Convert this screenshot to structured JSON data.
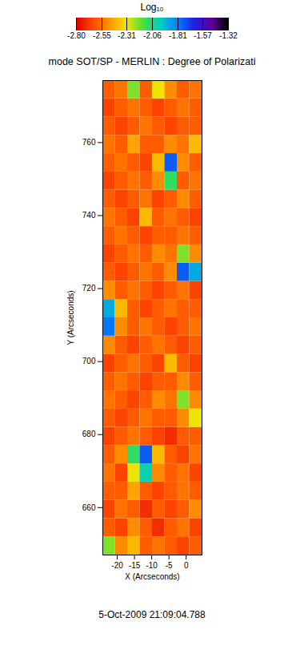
{
  "chart_data": {
    "type": "heatmap",
    "title": "mode SOT/SP - MERLIN : Degree of Polarizati",
    "caption": "5-Oct-2009 21:09:04.788",
    "x_label": "X (Arcseconds)",
    "y_label": "Y (Arcseconds)",
    "xlim": [
      -24.2,
      4.6
    ],
    "ylim": [
      647,
      777
    ],
    "xticks": [
      -20,
      -15,
      -10,
      -5,
      0
    ],
    "yticks": [
      660,
      680,
      700,
      720,
      740,
      760
    ],
    "x_edges": [
      -24.2,
      -20.6,
      -17,
      -13.4,
      -9.8,
      -6.2,
      -2.6,
      1,
      4.6
    ],
    "y_edges": [
      647,
      652,
      657,
      662,
      667,
      672,
      677,
      682,
      687,
      692,
      697,
      702,
      707,
      712,
      717,
      722,
      727,
      732,
      737,
      742,
      747,
      752,
      757,
      762,
      767,
      772,
      777
    ],
    "values": [
      [
        -2.2,
        -2.5,
        -2.4,
        -2.6,
        -2.55,
        -2.6,
        -2.65,
        -2.6
      ],
      [
        -2.6,
        -2.65,
        -2.5,
        -2.6,
        -2.7,
        -2.6,
        -2.55,
        -2.65
      ],
      [
        -2.65,
        -2.55,
        -2.6,
        -2.7,
        -2.6,
        -2.65,
        -2.6,
        -2.5
      ],
      [
        -2.6,
        -2.6,
        -2.45,
        -2.6,
        -2.65,
        -2.6,
        -2.55,
        -2.6
      ],
      [
        -2.55,
        -2.65,
        -2.3,
        -2.0,
        -2.5,
        -2.6,
        -2.55,
        -2.65
      ],
      [
        -2.6,
        -2.5,
        -2.1,
        -1.75,
        -2.4,
        -2.6,
        -2.65,
        -2.55
      ],
      [
        -2.65,
        -2.6,
        -2.55,
        -2.6,
        -2.65,
        -2.7,
        -2.6,
        -2.6
      ],
      [
        -2.6,
        -2.65,
        -2.6,
        -2.55,
        -2.6,
        -2.6,
        -2.5,
        -2.3
      ],
      [
        -2.55,
        -2.6,
        -2.65,
        -2.6,
        -2.5,
        -2.55,
        -2.2,
        -2.5
      ],
      [
        -2.6,
        -2.55,
        -2.6,
        -2.65,
        -2.6,
        -2.6,
        -2.5,
        -2.6
      ],
      [
        -2.65,
        -2.6,
        -2.55,
        -2.6,
        -2.65,
        -2.4,
        -2.6,
        -2.65
      ],
      [
        -2.5,
        -2.6,
        -2.65,
        -2.6,
        -2.55,
        -2.6,
        -2.65,
        -2.6
      ],
      [
        -1.8,
        -2.5,
        -2.6,
        -2.55,
        -2.6,
        -2.65,
        -2.6,
        -2.55
      ],
      [
        -1.9,
        -2.4,
        -2.6,
        -2.65,
        -2.6,
        -2.55,
        -2.6,
        -2.6
      ],
      [
        -2.5,
        -2.6,
        -2.55,
        -2.6,
        -2.65,
        -2.6,
        -2.55,
        -2.65
      ],
      [
        -2.6,
        -2.65,
        -2.6,
        -2.55,
        -2.6,
        -2.5,
        -1.75,
        -1.9
      ],
      [
        -2.65,
        -2.6,
        -2.55,
        -2.6,
        -2.5,
        -2.55,
        -2.2,
        -2.5
      ],
      [
        -2.6,
        -2.55,
        -2.6,
        -2.65,
        -2.6,
        -2.6,
        -2.55,
        -2.6
      ],
      [
        -2.55,
        -2.6,
        -2.65,
        -2.4,
        -2.6,
        -2.55,
        -2.6,
        -2.65
      ],
      [
        -2.6,
        -2.65,
        -2.6,
        -2.55,
        -2.65,
        -2.6,
        -2.5,
        -2.6
      ],
      [
        -2.65,
        -2.6,
        -2.55,
        -2.6,
        -2.5,
        -2.1,
        -2.6,
        -2.55
      ],
      [
        -2.6,
        -2.55,
        -2.6,
        -2.65,
        -2.4,
        -1.75,
        -2.5,
        -2.6
      ],
      [
        -2.55,
        -2.6,
        -2.45,
        -2.6,
        -2.6,
        -2.5,
        -2.55,
        -2.4
      ],
      [
        -2.6,
        -2.65,
        -2.6,
        -2.55,
        -2.6,
        -2.65,
        -2.6,
        -2.6
      ],
      [
        -2.65,
        -2.6,
        -2.55,
        -2.6,
        -2.65,
        -2.6,
        -2.55,
        -2.6
      ],
      [
        -2.6,
        -2.55,
        -2.2,
        -2.6,
        -2.3,
        -2.5,
        -2.6,
        -2.55
      ]
    ],
    "colorbar": {
      "label": "Log₁₀",
      "range": [
        -2.8,
        -1.32
      ],
      "ticks": [
        {
          "value": -2.8,
          "label": "-2.80"
        },
        -2.55,
        -2.31,
        -2.06,
        -1.81,
        -1.57,
        -1.32
      ]
    }
  }
}
